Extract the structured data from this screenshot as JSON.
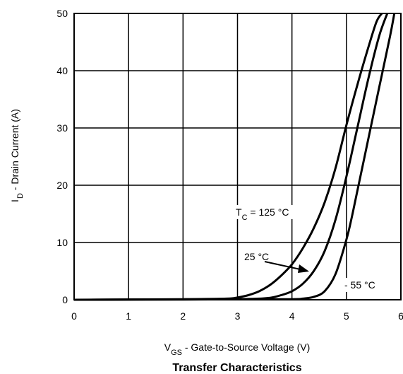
{
  "chart_data": {
    "type": "line",
    "title": "Transfer Characteristics",
    "xlabel": {
      "main": "V",
      "sub": "GS",
      "rest": " - Gate-to-Source Voltage (V)"
    },
    "ylabel": {
      "main": "I",
      "sub": "D",
      "rest": " - Drain Current (A)"
    },
    "xlim": [
      0,
      6
    ],
    "ylim": [
      0,
      50
    ],
    "xticks": [
      "0",
      "1",
      "2",
      "3",
      "4",
      "5",
      "6"
    ],
    "yticks": [
      "0",
      "10",
      "20",
      "30",
      "40",
      "50"
    ],
    "grid": true,
    "series": [
      {
        "name": "TC = 125 °C",
        "x": [
          0,
          1,
          2,
          2.8,
          3.0,
          3.2,
          3.4,
          3.6,
          3.8,
          4.0,
          4.2,
          4.4,
          4.6,
          4.8,
          5.0,
          5.2,
          5.4,
          5.55,
          5.65
        ],
        "y": [
          0,
          0.05,
          0.1,
          0.2,
          0.4,
          0.8,
          1.5,
          2.6,
          4.2,
          6.2,
          9,
          12.5,
          17,
          23,
          30.5,
          37.5,
          44,
          48.5,
          50
        ]
      },
      {
        "name": "25 °C",
        "x": [
          0,
          1,
          2,
          3.0,
          3.4,
          3.6,
          3.8,
          4.0,
          4.2,
          4.4,
          4.6,
          4.8,
          5.0,
          5.2,
          5.4,
          5.6,
          5.75
        ],
        "y": [
          0,
          0.02,
          0.05,
          0.1,
          0.2,
          0.35,
          0.8,
          1.5,
          2.8,
          5,
          8.5,
          14,
          21.5,
          30,
          38.5,
          46,
          50
        ]
      },
      {
        "name": "- 55 °C",
        "x": [
          0,
          1,
          2,
          3.0,
          4.0,
          4.2,
          4.4,
          4.6,
          4.8,
          5.0,
          5.1,
          5.2,
          5.4,
          5.6,
          5.8,
          5.88
        ],
        "y": [
          0,
          0.02,
          0.05,
          0.08,
          0.1,
          0.2,
          0.5,
          1.5,
          4.5,
          10.5,
          14.5,
          19,
          28,
          37,
          46,
          50
        ]
      }
    ],
    "annotations": {
      "tc": {
        "main": "T",
        "sub": "C",
        "rest": " = 125 °C"
      },
      "t25": "25 °C",
      "tm55": "- 55 °C"
    }
  }
}
